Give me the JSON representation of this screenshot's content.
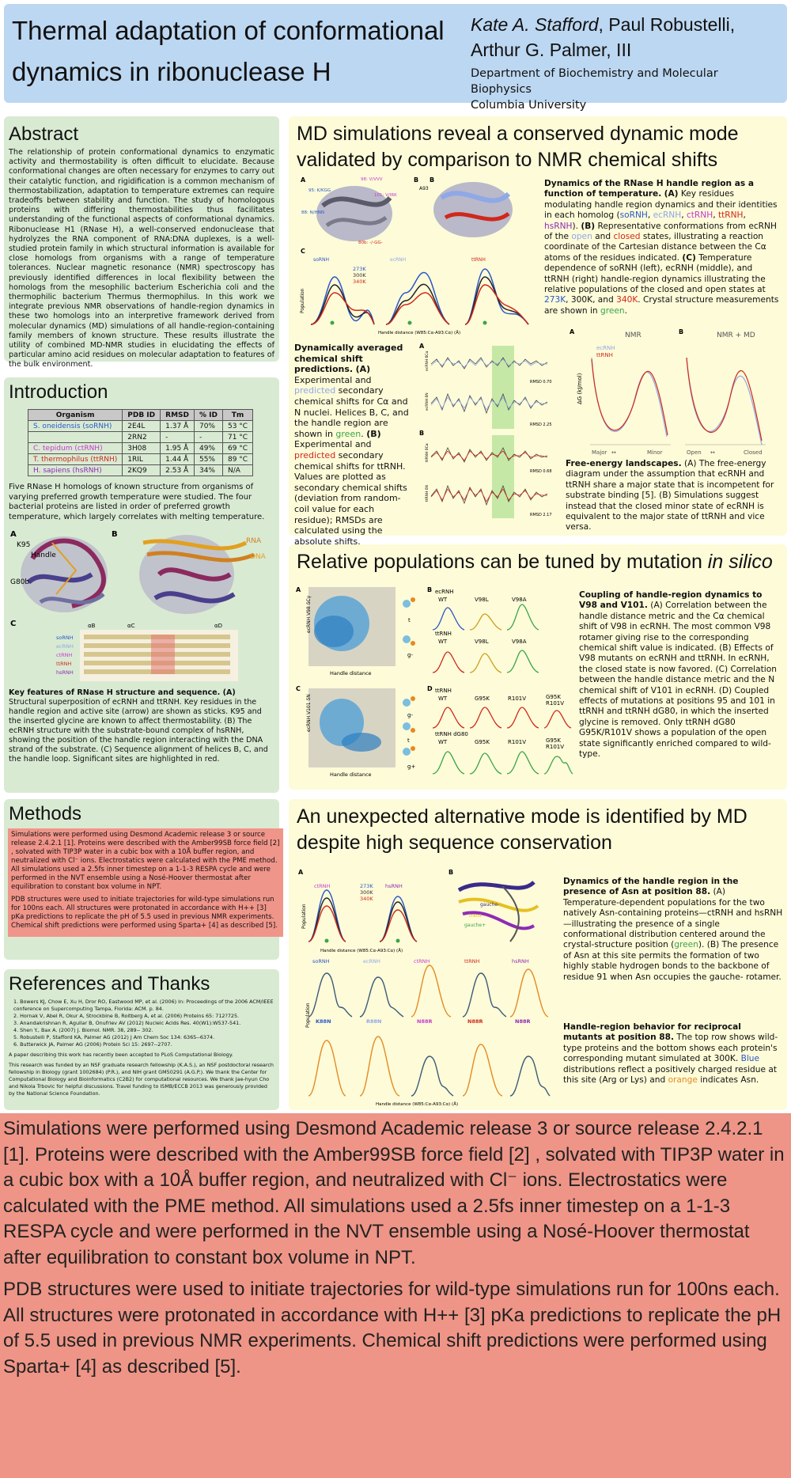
{
  "header": {
    "title_line1": "Thermal adaptation of conformational",
    "title_line2": "dynamics in ribonuclease H",
    "authors_line1_italic": "Kate A. Stafford",
    "authors_line1_rest": ", Paul Robustelli,",
    "authors_line2": "Arthur G. Palmer, III",
    "dept_line1": "Department of Biochemistry and Molecular Biophysics",
    "dept_line2": "Columbia University"
  },
  "abstract": {
    "heading": "Abstract",
    "text": "The relationship of protein conformational dynamics to enzymatic activity and thermostability is often difficult to elucidate. Because conformational changes are often necessary for enzymes to carry out their catalytic function, and rigidification is a common mechanism of thermostabilization, adaptation to temperature extremes can require tradeoffs between stability and function. The study of homologous proteins with differing thermostabilities thus facilitates understanding of the functional aspects of conformational dynamics. Ribonuclease H1 (RNase H), a well-conserved endonuclease that hydrolyzes the RNA component of RNA:DNA duplexes, is a well-studied protein family in which structural information is available for close homologs from organisms with a range of temperature tolerances. Nuclear magnetic resonance (NMR) spectroscopy has previously identified differences in local flexibility between the homologs from the mesophilic bacterium Escherichia coli and the thermophilic bacterium Thermus thermophilus. In this work we integrate previous NMR observations of handle-region dynamics in these two homologs into an interpretive framework derived from molecular dynamics (MD) simulations of all handle-region-containing family members of known structure. These results illustrate the utility of combined MD-NMR studies in elucidating the effects of particular amino acid residues on molecular adaptation to features of the bulk environment."
  },
  "introduction": {
    "heading": "Introduction",
    "table_headers": [
      "Organism",
      "PDB ID",
      "RMSD",
      "% ID",
      "Tm"
    ],
    "table_rows": [
      [
        "S. oneidensis (soRNH)",
        "2E4L",
        "1.37 Å",
        "70%",
        "53 °C"
      ],
      [
        "",
        "2RN2",
        "-",
        "-",
        "71 °C"
      ],
      [
        "C. tepidum (ctRNH)",
        "3H08",
        "1.95 Å",
        "49%",
        "69 °C"
      ],
      [
        "T. thermophilus (ttRNH)",
        "1RIL",
        "1.44 Å",
        "55%",
        "89 °C"
      ],
      [
        "H. sapiens (hsRNH)",
        "2KQ9",
        "2.53 Å",
        "34%",
        "N/A"
      ]
    ],
    "table_text": "Five RNase H homologs of known structure from organisms of varying preferred growth temperature were studied. The four bacterial proteins are listed in order of preferred growth temperature, which largely correlates with melting temperature.",
    "fig_labels": [
      "A",
      "B",
      "C",
      "K95",
      "Handle",
      "G80b",
      "RNA",
      "DNA",
      "αB",
      "αC",
      "αD"
    ],
    "seq_labels": [
      "soRNH",
      "ecRNH",
      "ctRNH",
      "ttRNH",
      "hsRNH"
    ],
    "caption_title": "Key features of RNase H structure and sequence. (A)",
    "caption_text": "Structural superposition of ecRNH and ttRNH. Key residues in the handle region and active site (arrow) are shown as sticks. K95 and the inserted glycine are known to affect thermostability. (B) The ecRNH structure with the substrate-bound complex of hsRNH, showing the position of the handle region interacting with the DNA strand of the substrate. (C) Sequence alignment of helices B, C, and the handle loop. Significant sites are highlighted in red."
  },
  "methods": {
    "heading": "Methods",
    "p1": "Simulations were performed using Desmond Academic release 3 or source release 2.4.2.1 [1]. Proteins were described with the Amber99SB force field [2] , solvated with TIP3P water in a cubic box with a 10Å buffer region, and neutralized with Cl⁻ ions. Electrostatics were calculated with the PME method.  All simulations used a 2.5fs inner timestep on a 1-1-3 RESPA cycle and were performed in the NVT ensemble using a Nosé-Hoover thermostat after equilibration to constant box volume in NPT.",
    "p2": "PDB structures were used to initiate trajectories for wild-type simulations run for 100ns each.  All structures were protonated in accordance with H++ [3] pKa predictions to replicate the pH of 5.5 used in previous NMR experiments. Chemical shift predictions were performed using Sparta+ [4] as described [5]."
  },
  "references": {
    "heading": "References and Thanks",
    "items": [
      "1.  Bowers KJ, Chow E, Xu H, Dror RO, Eastwood MP, et al. (2006) In: Proceedings of the 2006 ACM/IEEE conference on Supercomputing Tampa, Florida: ACM. p. 84.",
      "2.  Hornak V, Abel R, Okur A, Strockbine B, Roitberg A, et al. (2006) Proteins 65: 712?725.",
      "3.  Anandakrishnan R, Aguilar B, Onufriev AV (2012) Nucleic Acids Res. 40(W1):W537-541.",
      "4.  Shen Y., Bax A. (2007) J. Biomol. NMR. 38, 289-- 302.",
      "5.  Robustelli P, Stafford KA, Palmer AG (2012) J Am Chem Soc 134: 6365--6374.",
      "6.  Butterwick JA, Palmer AG (2006)  Protein Sci 15: 2697--2707."
    ],
    "note": "A paper describing this work has recently been accepted to PLoS Computational Biology.",
    "thanks": "This research was funded by an NSF graduate research fellowship (K.A.S.), an NSF postdoctoral research fellowship in Biology (grant 1002684) (P.R.), and NIH grant GM50291 (A.G.P.). We thank the Center for Computational Biology and Bioinformatics (C2B2) for computational resources. We thank Jae-hyun Cho and Nikola Trbovic for helpful discussions.  Travel funding to ISMB/ECCB 2013 was generously provided by the National Science Foundation."
  },
  "md_section": {
    "heading_line1": "MD simulations reveal a conserved dynamic mode",
    "heading_line2": "validated by comparison to NMR chemical shifts",
    "fig_labels": [
      "A",
      "B",
      "C",
      "95: K/KGG",
      "98: V/VVV",
      "101: V/IRK",
      "88: N/HNN",
      "80b: -/-GG-",
      "A93",
      "soRNH",
      "ecRNH",
      "ttRNH",
      "273K",
      "300K",
      "340K",
      "Population",
      "Handle distance (W85:Cα-A93:Cα) (Å)"
    ],
    "caption_title": "Dynamics of the RNase H handle region as a function of temperature.",
    "caption_parts": {
      "a": "(A)",
      "a_text": " Key residues modulating handle region dynamics and their identities in each homolog (",
      "so": "soRNH",
      "ec": "ecRNH",
      "ct": "ctRNH",
      "tt": "ttRNH",
      "hs": "hsRNH",
      "b": "(B)",
      "b_text1": " Representative conformations from ecRNH of the ",
      "open": "open",
      "b_text2": " and ",
      "closed": "closed",
      "b_text3": " states, illustrating a reaction coordinate of the Cartesian distance between the Cα atoms of the residues indicated. ",
      "c": "(C)",
      "c_text1": " Temperature dependence of soRNH (left), ecRNH (middle), and ttRNH (right) handle-region dynamics illustrating the relative populations of the closed and open states at ",
      "t273": "273K",
      "c_text2": ", 300K, and ",
      "t340": "340K",
      "c_text3": ". Crystal structure measurements are shown in ",
      "green": "green",
      "c_text4": "."
    },
    "cs_title": "Dynamically averaged chemical shift predictions.",
    "cs_parts": {
      "a": "(A)",
      "a_text1": " Experimental and ",
      "predicted": "predicted",
      "a_text2": " secondary chemical shifts for Cα and N nuclei. Helices B, C, and the handle region are shown in ",
      "green": "green",
      "b": "(B)",
      "b_text1": " Experimental and ",
      "predicted2": "predicted",
      "b_text2": " secondary chemical shifts for ttRNH. Values are plotted as secondary chemical shifts (deviation from random-coil value for each residue); RMSDs are calculated using the absolute shifts."
    },
    "cs_fig": {
      "labels": [
        "A",
        "B"
      ],
      "rmsd": [
        "RMSD 0.70",
        "RMSD 2.25",
        "RMSD 0.68",
        "RMSD 2.17"
      ],
      "ylabels": [
        "ecRNH δCα",
        "ecRNH δN",
        "ttRNH δCα",
        "ttRNH δN"
      ]
    },
    "fe_fig": {
      "labels": [
        "A",
        "B"
      ],
      "titles": [
        "NMR",
        "NMR + MD"
      ],
      "legend": [
        "ecRNH",
        "ttRNH"
      ],
      "xlabels_a": [
        "Major",
        "Minor"
      ],
      "xlabels_b": [
        "Open",
        "Closed"
      ],
      "ylabel": "ΔG (kJ/mol)"
    },
    "fe_title": "Free-energy landscapes.",
    "fe_text": " (A) The free-energy diagram under the assumption that ecRNH and ttRNH share a major state that is incompetent for substrate binding [5]. (B) Simulations suggest instead that the closed minor state of ecRNH is equivalent to the major state of ttRNH and vice versa."
  },
  "mutation_section": {
    "heading_main": "Relative populations can be tuned by mutation ",
    "heading_italic": "in silico",
    "fig_labels": [
      "A",
      "B",
      "C",
      "D",
      "ecRNH",
      "WT",
      "V98L",
      "V98A",
      "ttRNH",
      "WT",
      "V98L",
      "V98A",
      "ecRNH",
      "WT",
      "G95K",
      "R101V",
      "G95K R101V",
      "ttRNH dG80",
      "WT",
      "G95K",
      "R101V",
      "G95K R101V",
      "Handle distance",
      "ecRNH V98 δCγ",
      "ecRNH V101 δN",
      "t",
      "g-",
      "g-",
      "t",
      "g+"
    ],
    "caption_title": "Coupling of handle-region dynamics to V98 and V101.",
    "caption_text": " (A) Correlation between the handle distance metric and the Cα chemical shift of V98 in ecRNH. The most common V98 rotamer giving rise to the corresponding chemical shift value is indicated. (B) Effects of V98 mutants on ecRNH and ttRNH. In ecRNH, the closed state is now favored. (C) Correlation between the handle distance metric and the N chemical shift of V101 in ecRNH. (D) Coupled effects of mutations at positions 95 and 101 in ttRNH and ttRNH dG80, in which the inserted glycine is removed. Only ttRNH dG80 G95K/R101V shows a population of the open state significantly enriched compared to wild-type."
  },
  "alt_section": {
    "heading_line1": "An unexpected alternative mode is identified by MD",
    "heading_line2": "despite high sequence conservation",
    "fig_labels": [
      "A",
      "B",
      "ctRNH",
      "hsRNH",
      "273K",
      "300K",
      "340K",
      "Population",
      "Handle distance (W85:Cα-A93:Cα) (Å)",
      "gauche-",
      "trans",
      "gauche+",
      "soRNH",
      "ecRNH",
      "ctRNH",
      "ttRNH",
      "hsRNH",
      "K88N",
      "R88N",
      "N88R",
      "N88R",
      "N88R"
    ],
    "cap1_title": "Dynamics of the handle region in the presence of Asn at position 88.",
    "cap1_text": " (A) Temperature-dependent populations for the two natively Asn-containing proteins—ctRNH and hsRNH—illustrating the presence of a single conformational distribution centered around the crystal-structure position (",
    "cap1_green": "green",
    "cap1_text2": "). (B) The presence of Asn at this site permits the formation of two highly stable hydrogen bonds to the backbone of residue 91 when Asn occupies the gauche- rotamer.",
    "cap2_title": "Handle-region behavior for reciprocal mutants at position 88.",
    "cap2_text": " The top row shows wild-type proteins and the bottom shows each protein's corresponding mutant simulated at 300K. ",
    "cap2_blue": "Blue",
    "cap2_text2": " distributions reflect a positively charged residue at this site (Arg or Lys) and ",
    "cap2_orange": "orange",
    "cap2_text3": " indicates Asn."
  },
  "chart_data": [
    {
      "type": "line",
      "title": "",
      "ylabel": "Population",
      "xlabel": "Handle distance (W85:Cα-A93:Cα) (Å)",
      "series": [
        {
          "name": "273K"
        },
        {
          "name": "300K"
        },
        {
          "name": "340K"
        }
      ],
      "panels": [
        "soRNH",
        "ecRNH",
        "ttRNH"
      ]
    },
    {
      "type": "line",
      "titles": [
        "NMR",
        "NMR + MD"
      ],
      "ylabel": "ΔG (kJ/mol)",
      "series": [
        {
          "name": "ecRNH"
        },
        {
          "name": "ttRNH"
        }
      ]
    }
  ],
  "colors": {
    "title_bg": "#bcd7f1",
    "green_panel": "#d9ead3",
    "yellow_panel": "#fdfbd8",
    "methods_bg": "#ee9587"
  }
}
